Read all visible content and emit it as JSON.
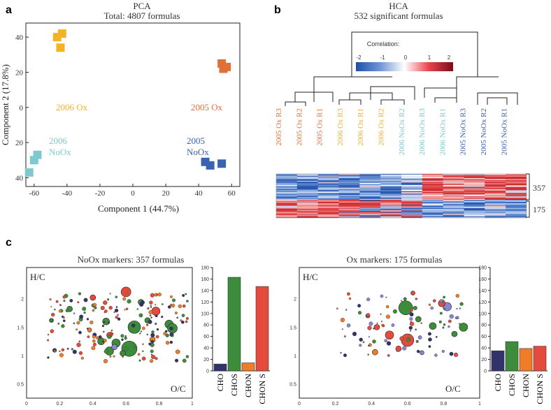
{
  "panels": {
    "a": "a",
    "b": "b",
    "c": "c"
  },
  "colors": {
    "ox2006": "#f5b224",
    "ox2005": "#e0703a",
    "noox2006": "#7ec8d0",
    "noox2005": "#3a62b0",
    "cho": "#33336b",
    "chos": "#3c8c3c",
    "chon": "#f07c28",
    "s": "#e54b3c",
    "line": "#222222"
  },
  "chart_data": [
    {
      "type": "scatter",
      "title": "PCA",
      "subtitle": "Total: 4807 formulas",
      "xlabel": "Component 1 (44.7%)",
      "ylabel": "Component 2 (17.8%)",
      "xlim": [
        -65,
        65
      ],
      "ylim": [
        -45,
        48
      ],
      "xticks": [
        "-60",
        "-40",
        "-20",
        "0",
        "20",
        "40",
        "60"
      ],
      "yticks": [
        "40",
        "20",
        "0",
        "20",
        "40"
      ],
      "yticks_values": [
        40,
        20,
        0,
        -20,
        -40
      ],
      "xticks_values": [
        -60,
        -40,
        -20,
        0,
        20,
        40,
        60
      ],
      "series": [
        {
          "name": "2006 Ox",
          "label": "2006 Ox",
          "color_key": "ox2006",
          "points": [
            [
              -46,
              40
            ],
            [
              -43,
              42
            ],
            [
              -44,
              34
            ]
          ]
        },
        {
          "name": "2005 Ox",
          "label": "2005 Ox",
          "color_key": "ox2005",
          "points": [
            [
              54,
              25
            ],
            [
              57,
              23
            ],
            [
              55,
              22
            ]
          ]
        },
        {
          "name": "2006 NoOx",
          "label_line1": "2006",
          "label_line2": "NoOx",
          "color_key": "noox2006",
          "points": [
            [
              -58,
              -27
            ],
            [
              -60,
              -30
            ],
            [
              -63,
              -37
            ]
          ]
        },
        {
          "name": "2005 NoOx",
          "label_line1": "2005",
          "label_line2": "NoOx",
          "color_key": "noox2005",
          "points": [
            [
              44,
              -31
            ],
            [
              47,
              -33
            ],
            [
              54,
              -32
            ]
          ]
        }
      ]
    },
    {
      "type": "heatmap",
      "title": "HCA",
      "subtitle": "532 significant formulas",
      "legend_title": "Correlation:",
      "legend_ticks": [
        "-2",
        "-1",
        "0",
        "1",
        "2"
      ],
      "samples": [
        {
          "label": "2005 Ox  R3",
          "color_key": "ox2005"
        },
        {
          "label": "2005 Ox  R2",
          "color_key": "ox2005"
        },
        {
          "label": "2005 Ox  R1",
          "color_key": "ox2005"
        },
        {
          "label": "2006 Ox  R3",
          "color_key": "ox2006"
        },
        {
          "label": "2006 Ox  R1",
          "color_key": "ox2006"
        },
        {
          "label": "2006 Ox  R2",
          "color_key": "ox2006"
        },
        {
          "label": "2006 NoOx  R2",
          "color_key": "noox2006"
        },
        {
          "label": "2006 NoOx  R3",
          "color_key": "noox2006"
        },
        {
          "label": "2006 NoOx  R1",
          "color_key": "noox2006"
        },
        {
          "label": "2005 NoOx  R3",
          "color_key": "noox2005"
        },
        {
          "label": "2005 NoOx  R2",
          "color_key": "noox2005"
        },
        {
          "label": "2005 NoOx  R1",
          "color_key": "noox2005"
        }
      ],
      "clusters": [
        {
          "label": "357",
          "rows": 357
        },
        {
          "label": "175",
          "rows": 175
        }
      ]
    },
    {
      "type": "bar",
      "title": "NoOx markers: 357 formulas",
      "scatter_xlabel": "O/C",
      "scatter_ylabel": "H/C",
      "scatter_xticks": [
        "0",
        "0.2",
        "0.4",
        "0.6",
        "0.8",
        "1"
      ],
      "scatter_yticks": [
        "0.5",
        "1",
        "1.5",
        "2"
      ],
      "categories": [
        "CHO",
        "CHOS",
        "CHON",
        "CHON S"
      ],
      "values": [
        12,
        163,
        14,
        147
      ],
      "ylim": [
        0,
        180
      ],
      "yticks": [
        "0",
        "20",
        "40",
        "60",
        "80",
        "100",
        "120",
        "140",
        "160",
        "180"
      ]
    },
    {
      "type": "bar",
      "title": "Ox markers: 175 formulas",
      "scatter_xlabel": "O/C",
      "scatter_ylabel": "H/C",
      "scatter_xticks": [
        "0",
        "0.2",
        "0.4",
        "0.6",
        "0.8",
        "1"
      ],
      "scatter_yticks": [
        "0.5",
        "1",
        "1.5",
        "2"
      ],
      "categories": [
        "CHO",
        "CHOS",
        "CHON",
        "CHON S"
      ],
      "values": [
        35,
        51,
        39,
        43
      ],
      "ylim": [
        0,
        180
      ],
      "yticks": [
        "0",
        "20",
        "40",
        "60",
        "80",
        "100",
        "120",
        "140",
        "160",
        "180"
      ]
    }
  ]
}
